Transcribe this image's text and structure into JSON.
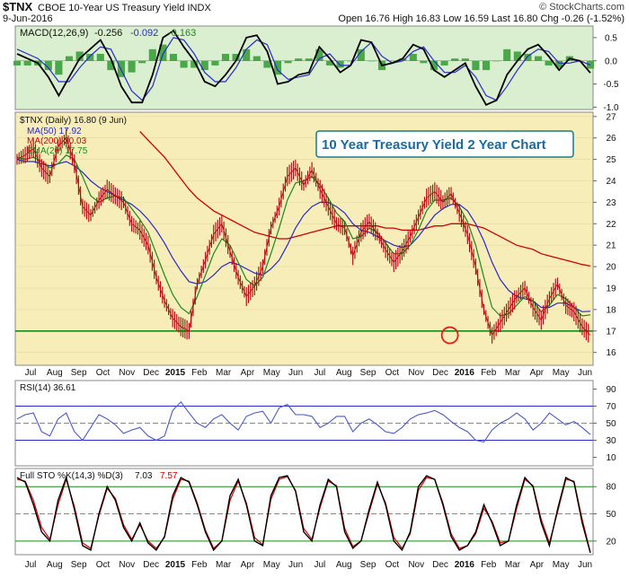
{
  "header": {
    "symbol": "$TNX",
    "name": "CBOE 10-Year US Treasury Yield INDX",
    "date": "9-Jun-2016",
    "quote": "Open 16.76  High 16.83  Low 16.59  Last 16.80  Chg -0.26 (-1.52%)",
    "watermark": "© StockCharts.com"
  },
  "colors": {
    "price": "#b0000a",
    "ma50": "#2a2ac8",
    "ma200": "#d00000",
    "ema20": "#1a8a1a",
    "support": "#1a8a1a",
    "macd_bg": "#ccebc4",
    "price_bg": "#f7edb6",
    "rsi": "#4a58c8",
    "sto_k": "#000000",
    "sto_d": "#d00000"
  },
  "chart_data": [
    {
      "type": "line",
      "panel": "macd",
      "title": "MACD(12,26,9) -0.256, -0.092, -0.163",
      "legend": {
        "label": "MACD(12,26,9)",
        "v1": "-0.256",
        "v2": "-0.092",
        "v3": "-0.163"
      },
      "ylim": [
        -1.05,
        0.75
      ],
      "y_ticks": [
        0.5,
        0.0,
        -0.5,
        -1.0
      ],
      "y_tick_labels": [
        "0.5",
        "0.0",
        "-0.5",
        "-1.0"
      ],
      "series": [
        {
          "name": "MACD",
          "values": [
            0.15,
            0.05,
            -0.05,
            -0.35,
            -0.75,
            -0.35,
            0.05,
            0.25,
            0.45,
            0.05,
            -0.55,
            -0.9,
            -0.9,
            -0.3,
            0.5,
            0.65,
            0.3,
            0.0,
            -0.45,
            -0.55,
            -0.3,
            0.0,
            0.5,
            0.55,
            0.2,
            -0.5,
            -0.45,
            -0.3,
            -0.25,
            0.3,
            0.05,
            -0.25,
            -0.1,
            0.45,
            0.4,
            -0.1,
            -0.05,
            0.05,
            0.35,
            0.25,
            -0.2,
            -0.35,
            -0.2,
            -0.05,
            -0.55,
            -0.95,
            -0.85,
            -0.3,
            0.0,
            0.25,
            0.35,
            0.1,
            -0.2,
            0.05,
            0.0,
            -0.26
          ]
        },
        {
          "name": "Signal",
          "values": [
            0.25,
            0.15,
            0.05,
            -0.15,
            -0.45,
            -0.45,
            -0.15,
            0.1,
            0.3,
            0.25,
            -0.2,
            -0.65,
            -0.85,
            -0.55,
            0.15,
            0.5,
            0.45,
            0.15,
            -0.25,
            -0.45,
            -0.45,
            -0.15,
            0.25,
            0.45,
            0.35,
            -0.2,
            -0.4,
            -0.35,
            -0.3,
            0.05,
            0.15,
            -0.1,
            -0.1,
            0.2,
            0.4,
            0.1,
            -0.05,
            0.0,
            0.2,
            0.3,
            0.0,
            -0.25,
            -0.25,
            -0.1,
            -0.35,
            -0.75,
            -0.85,
            -0.55,
            -0.2,
            0.1,
            0.25,
            0.2,
            -0.05,
            -0.05,
            0.0,
            -0.09
          ]
        }
      ]
    },
    {
      "type": "line",
      "panel": "price",
      "title": "10 Year Treasury Yield 2 Year Chart",
      "legend": [
        {
          "label": "$TNX (Daily) 16.80 (9 Jun)"
        },
        {
          "label": "MA(50) 17.92"
        },
        {
          "label": "MA(200) 20.03"
        },
        {
          "label": "EMA(20) 17.75"
        }
      ],
      "ylim": [
        15.4,
        27.2
      ],
      "y_ticks": [
        16,
        17,
        18,
        19,
        20,
        21,
        22,
        23,
        24,
        25,
        26,
        27
      ],
      "y_tick_labels": [
        "16",
        "17",
        "18",
        "19",
        "20",
        "21",
        "22",
        "23",
        "24",
        "25",
        "26",
        "27"
      ],
      "support_level": 17.0,
      "circled_point": {
        "x": 53.6,
        "y": 16.8
      },
      "series": [
        {
          "name": "$TNX",
          "values": [
            25.0,
            25.2,
            25.5,
            24.6,
            24.2,
            25.6,
            26.0,
            24.8,
            22.8,
            22.4,
            23.1,
            23.6,
            23.3,
            23.0,
            22.0,
            21.7,
            21.0,
            19.5,
            18.4,
            17.6,
            17.2,
            17.0,
            19.2,
            20.3,
            21.5,
            22.0,
            20.7,
            19.5,
            18.6,
            19.1,
            20.0,
            21.8,
            22.8,
            24.2,
            24.6,
            23.8,
            24.5,
            23.6,
            22.8,
            22.0,
            21.8,
            20.5,
            21.6,
            22.1,
            21.5,
            20.8,
            20.2,
            20.7,
            21.4,
            22.3,
            23.2,
            23.5,
            23.0,
            23.4,
            22.5,
            21.5,
            20.0,
            18.0,
            16.8,
            17.4,
            18.0,
            18.6,
            19.0,
            18.1,
            17.5,
            18.5,
            19.2,
            18.2,
            17.9,
            17.2,
            16.8
          ]
        },
        {
          "name": "MA(50)",
          "values": [
            25.0,
            24.9,
            24.9,
            24.8,
            24.7,
            24.8,
            24.9,
            24.7,
            24.4,
            24.0,
            23.7,
            23.5,
            23.3,
            23.1,
            22.9,
            22.6,
            22.2,
            21.7,
            21.1,
            20.4,
            19.8,
            19.3,
            19.2,
            19.3,
            19.6,
            20.0,
            20.2,
            20.1,
            19.9,
            19.7,
            19.6,
            19.9,
            20.3,
            21.0,
            21.8,
            22.4,
            22.8,
            23.0,
            23.0,
            22.8,
            22.5,
            22.0,
            21.7,
            21.6,
            21.4,
            21.2,
            21.0,
            20.9,
            21.0,
            21.4,
            21.9,
            22.4,
            22.7,
            22.9,
            22.9,
            22.6,
            22.0,
            21.2,
            20.2,
            19.4,
            18.9,
            18.6,
            18.5,
            18.4,
            18.1,
            18.1,
            18.3,
            18.3,
            18.1,
            17.9,
            17.92
          ]
        },
        {
          "name": "MA(200)",
          "values": [
            null,
            null,
            null,
            null,
            null,
            null,
            null,
            null,
            null,
            null,
            null,
            null,
            null,
            null,
            null,
            26.3,
            25.9,
            25.5,
            25.1,
            24.6,
            24.1,
            23.6,
            23.2,
            22.9,
            22.6,
            22.4,
            22.2,
            22.0,
            21.8,
            21.6,
            21.5,
            21.4,
            21.3,
            21.3,
            21.4,
            21.5,
            21.6,
            21.7,
            21.8,
            21.9,
            21.9,
            21.9,
            21.9,
            21.9,
            21.9,
            21.8,
            21.8,
            21.7,
            21.7,
            21.7,
            21.8,
            21.9,
            21.9,
            22.0,
            22.0,
            22.0,
            21.9,
            21.8,
            21.6,
            21.4,
            21.2,
            21.0,
            20.9,
            20.8,
            20.6,
            20.5,
            20.4,
            20.3,
            20.2,
            20.1,
            20.03
          ]
        },
        {
          "name": "EMA(20)",
          "values": [
            25.1,
            25.0,
            25.1,
            24.9,
            24.6,
            24.8,
            25.2,
            25.0,
            24.2,
            23.3,
            23.0,
            23.2,
            23.3,
            23.2,
            22.7,
            22.2,
            21.6,
            20.6,
            19.6,
            18.7,
            18.1,
            17.8,
            18.6,
            19.6,
            20.6,
            21.3,
            21.0,
            20.2,
            19.4,
            19.1,
            19.5,
            20.6,
            21.8,
            23.1,
            23.9,
            24.0,
            24.2,
            23.8,
            23.2,
            22.5,
            22.1,
            21.3,
            21.4,
            21.8,
            21.6,
            21.1,
            20.6,
            20.6,
            21.0,
            21.7,
            22.6,
            23.1,
            23.1,
            23.2,
            22.8,
            22.1,
            21.0,
            19.5,
            18.1,
            17.7,
            17.8,
            18.2,
            18.6,
            18.4,
            17.9,
            18.2,
            18.7,
            18.5,
            18.1,
            17.7,
            17.75
          ]
        }
      ]
    },
    {
      "type": "line",
      "panel": "rsi",
      "legend": {
        "label": "RSI(14) 36.61"
      },
      "ylim": [
        0,
        100
      ],
      "y_ticks": [
        90,
        70,
        50,
        30,
        10
      ],
      "y_tick_labels": [
        "90",
        "70",
        "50",
        "30",
        "10"
      ],
      "bands": [
        70,
        50,
        30
      ],
      "series": [
        {
          "name": "RSI(14)",
          "values": [
            55,
            60,
            62,
            40,
            35,
            55,
            62,
            40,
            30,
            45,
            60,
            55,
            48,
            38,
            42,
            45,
            35,
            30,
            35,
            65,
            75,
            62,
            50,
            45,
            55,
            60,
            50,
            42,
            58,
            62,
            64,
            50,
            68,
            72,
            60,
            60,
            58,
            45,
            50,
            58,
            58,
            40,
            50,
            55,
            48,
            40,
            38,
            45,
            55,
            60,
            62,
            65,
            60,
            52,
            45,
            40,
            30,
            28,
            42,
            50,
            55,
            62,
            55,
            42,
            50,
            62,
            55,
            48,
            52,
            45,
            36.61
          ]
        }
      ]
    },
    {
      "type": "line",
      "panel": "sto",
      "legend": {
        "label": "Full STO %K(14,3) %D(3)",
        "k": "7.03",
        "d": "7.57"
      },
      "ylim": [
        5,
        100
      ],
      "y_ticks": [
        80,
        50,
        20
      ],
      "y_tick_labels": [
        "80",
        "50",
        "20"
      ],
      "bands": [
        80,
        50,
        20
      ],
      "series": [
        {
          "name": "%K",
          "values": [
            90,
            85,
            60,
            30,
            20,
            65,
            90,
            55,
            15,
            10,
            50,
            80,
            65,
            35,
            20,
            40,
            18,
            10,
            25,
            70,
            90,
            85,
            60,
            30,
            10,
            20,
            70,
            88,
            60,
            20,
            15,
            70,
            90,
            92,
            75,
            30,
            20,
            60,
            88,
            80,
            30,
            12,
            20,
            55,
            85,
            60,
            20,
            10,
            30,
            80,
            92,
            88,
            60,
            25,
            10,
            15,
            30,
            60,
            40,
            15,
            20,
            60,
            90,
            80,
            40,
            15,
            55,
            90,
            85,
            40,
            7.03
          ]
        },
        {
          "name": "%D",
          "values": [
            88,
            86,
            65,
            35,
            22,
            60,
            88,
            58,
            18,
            12,
            48,
            78,
            67,
            38,
            22,
            38,
            20,
            12,
            24,
            66,
            88,
            86,
            62,
            32,
            12,
            20,
            65,
            86,
            62,
            24,
            16,
            66,
            88,
            91,
            76,
            34,
            22,
            57,
            86,
            81,
            34,
            14,
            20,
            52,
            83,
            62,
            24,
            12,
            28,
            76,
            90,
            88,
            62,
            28,
            12,
            15,
            28,
            56,
            42,
            18,
            20,
            56,
            88,
            81,
            44,
            18,
            52,
            88,
            86,
            44,
            7.57
          ]
        }
      ]
    },
    {
      "type": "axis",
      "panel": "time",
      "x_tick_labels": [
        "Jul",
        "Aug",
        "Sep",
        "Oct",
        "Nov",
        "Dec",
        "2015",
        "Feb",
        "Mar",
        "Apr",
        "May",
        "Jun",
        "Jul",
        "Aug",
        "Sep",
        "Oct",
        "Nov",
        "Dec",
        "2016",
        "Feb",
        "Mar",
        "Apr",
        "May",
        "Jun"
      ],
      "x_tick_positions": [
        0,
        1,
        2,
        3,
        4,
        5,
        6,
        7,
        8,
        9,
        10,
        11,
        12,
        13,
        14,
        15,
        16,
        17,
        18,
        19,
        20,
        21,
        22,
        23
      ],
      "bold_ticks": [
        "2015",
        "2016"
      ]
    }
  ]
}
